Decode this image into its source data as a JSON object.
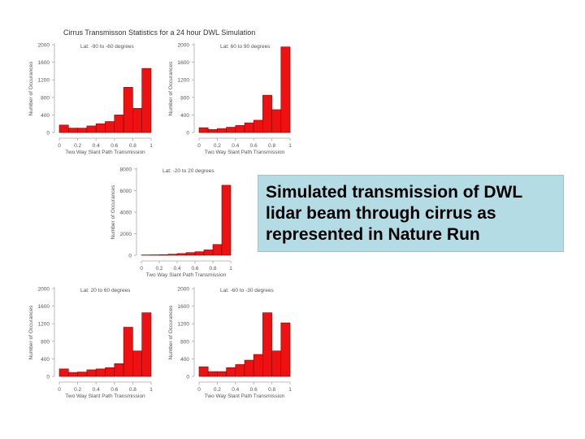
{
  "title": "Cirrus Transmisson Statistics for a 24 hour DWL Simulation",
  "caption": "Simulated transmission of DWL lidar beam through cirrus as represented in Nature Run",
  "colors": {
    "bar_fill": "#ee1111",
    "bar_stroke": "#880000",
    "caption_bg": "#b4dce4"
  },
  "chart_data": [
    {
      "type": "bar",
      "subtitle": "Lat: -90 to -60 degrees",
      "xlabel": "Two Way Slant Path Transmission",
      "ylabel": "Number of Occurances",
      "x_ticks": [
        "0",
        "0.2",
        "0.4",
        "0.6",
        "0.8",
        "1"
      ],
      "y_ticks": [
        "0",
        "400",
        "800",
        "1200",
        "1600",
        "2000"
      ],
      "xlim": [
        0,
        1
      ],
      "ylim": [
        0,
        2000
      ],
      "bin_edges": [
        0,
        0.1,
        0.2,
        0.3,
        0.4,
        0.5,
        0.6,
        0.7,
        0.8,
        0.9,
        1.0
      ],
      "values": [
        170,
        100,
        100,
        150,
        200,
        250,
        400,
        1030,
        550,
        1460
      ]
    },
    {
      "type": "bar",
      "subtitle": "Lat: 60 to 90 degrees",
      "xlabel": "Two Way Slant Path Transmission",
      "ylabel": "Number of Occurances",
      "x_ticks": [
        "0",
        "0.2",
        "0.4",
        "0.6",
        "0.8",
        "1"
      ],
      "y_ticks": [
        "0",
        "400",
        "800",
        "1200",
        "1600",
        "2000"
      ],
      "xlim": [
        0,
        1
      ],
      "ylim": [
        0,
        2000
      ],
      "bin_edges": [
        0,
        0.1,
        0.2,
        0.3,
        0.4,
        0.5,
        0.6,
        0.7,
        0.8,
        0.9,
        1.0
      ],
      "values": [
        110,
        70,
        90,
        120,
        160,
        220,
        280,
        850,
        520,
        1950
      ]
    },
    {
      "type": "bar",
      "subtitle": "Lat: -20 to 20 degrees",
      "xlabel": "Two Way Slant Path Transmission",
      "ylabel": "Number of Occurances",
      "x_ticks": [
        "0",
        "0.2",
        "0.4",
        "0.6",
        "0.8",
        "1"
      ],
      "y_ticks": [
        "0",
        "2000",
        "4000",
        "6000",
        "8000"
      ],
      "xlim": [
        0,
        1
      ],
      "ylim": [
        0,
        8000
      ],
      "bin_edges": [
        0,
        0.1,
        0.2,
        0.3,
        0.4,
        0.5,
        0.6,
        0.7,
        0.8,
        0.9,
        1.0
      ],
      "values": [
        30,
        40,
        60,
        100,
        160,
        250,
        330,
        500,
        1000,
        6500
      ]
    },
    {
      "type": "bar",
      "subtitle": "Lat: 20 to 60 degrees",
      "xlabel": "Two Way Slant Path Transmission",
      "ylabel": "Number of Occurances",
      "x_ticks": [
        "0",
        "0.2",
        "0.4",
        "0.6",
        "0.8",
        "1"
      ],
      "y_ticks": [
        "0",
        "400",
        "800",
        "1200",
        "1600",
        "2000"
      ],
      "xlim": [
        0,
        1
      ],
      "ylim": [
        0,
        2000
      ],
      "bin_edges": [
        0,
        0.1,
        0.2,
        0.3,
        0.4,
        0.5,
        0.6,
        0.7,
        0.8,
        0.9,
        1.0
      ],
      "values": [
        170,
        90,
        100,
        150,
        170,
        200,
        290,
        1120,
        580,
        1450
      ]
    },
    {
      "type": "bar",
      "subtitle": "Lat: -60 to -30 degrees",
      "xlabel": "Two Way Slant Path Transmission",
      "ylabel": "Number of Occurances",
      "x_ticks": [
        "0",
        "0.2",
        "0.4",
        "0.6",
        "0.8",
        "1"
      ],
      "y_ticks": [
        "0",
        "400",
        "800",
        "1200",
        "1600",
        "2000"
      ],
      "xlim": [
        0,
        1
      ],
      "ylim": [
        0,
        2000
      ],
      "bin_edges": [
        0,
        0.1,
        0.2,
        0.3,
        0.4,
        0.5,
        0.6,
        0.7,
        0.8,
        0.9,
        1.0
      ],
      "values": [
        220,
        110,
        110,
        200,
        270,
        370,
        500,
        1450,
        580,
        1220
      ]
    }
  ]
}
